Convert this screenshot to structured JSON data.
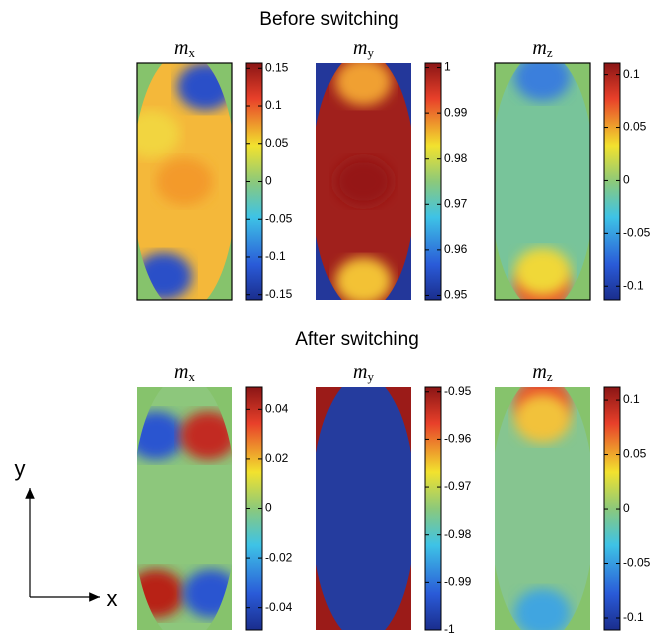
{
  "sections": [
    {
      "title": "Before switching"
    },
    {
      "title": "After switching"
    }
  ],
  "axes_legend": {
    "x": "x",
    "y": "y"
  },
  "chart_data": [
    {
      "type": "heatmap",
      "title": "m",
      "subscript": "x",
      "clim": [
        -0.157,
        0.157
      ],
      "cticks": [
        -0.15,
        -0.1,
        -0.05,
        0,
        0.05,
        0.1,
        0.15
      ]
    },
    {
      "type": "heatmap",
      "title": "m",
      "subscript": "y",
      "clim": [
        0.949,
        1.001
      ],
      "cticks": [
        0.95,
        0.96,
        0.97,
        0.98,
        0.99,
        1
      ]
    },
    {
      "type": "heatmap",
      "title": "m",
      "subscript": "z",
      "clim": [
        -0.113,
        0.111
      ],
      "cticks": [
        -0.1,
        -0.05,
        0,
        0.05,
        0.1
      ]
    },
    {
      "type": "heatmap",
      "title": "m",
      "subscript": "x",
      "clim": [
        -0.049,
        0.049
      ],
      "cticks": [
        -0.04,
        -0.02,
        0,
        0.02,
        0.04
      ]
    },
    {
      "type": "heatmap",
      "title": "m",
      "subscript": "y",
      "clim": [
        -1,
        -0.949
      ],
      "cticks": [
        -1,
        -0.99,
        -0.98,
        -0.97,
        -0.96,
        -0.95
      ]
    },
    {
      "type": "heatmap",
      "title": "m",
      "subscript": "z",
      "clim": [
        -0.111,
        0.112
      ],
      "cticks": [
        -0.1,
        -0.05,
        0,
        0.05,
        0.1
      ]
    }
  ]
}
